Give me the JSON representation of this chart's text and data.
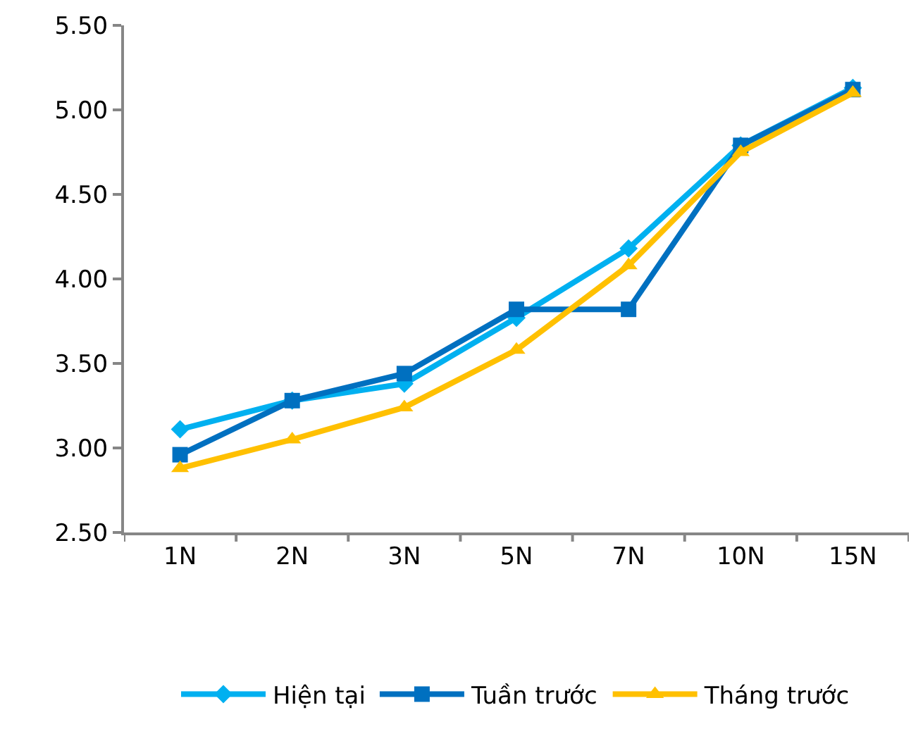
{
  "chart_data": {
    "type": "line",
    "categories": [
      "1N",
      "2N",
      "3N",
      "5N",
      "7N",
      "10N",
      "15N"
    ],
    "series": [
      {
        "name": "Hiện tại",
        "color": "#00b0f0",
        "marker": "diamond",
        "values": [
          3.11,
          3.28,
          3.38,
          3.77,
          4.18,
          4.79,
          5.13
        ]
      },
      {
        "name": "Tuần trước",
        "color": "#0070c0",
        "marker": "square",
        "values": [
          2.96,
          3.28,
          3.44,
          3.82,
          3.82,
          4.79,
          5.12
        ]
      },
      {
        "name": "Tháng trước",
        "color": "#ffc000",
        "marker": "triangle",
        "values": [
          2.88,
          3.05,
          3.24,
          3.58,
          4.08,
          4.75,
          5.1
        ]
      }
    ],
    "ylim": [
      2.5,
      5.5
    ],
    "yticks": [
      {
        "value": 2.5,
        "label": "2.50"
      },
      {
        "value": 3,
        "label": "3.00"
      },
      {
        "value": 3.5,
        "label": "3.50"
      },
      {
        "value": 4,
        "label": "4.00"
      },
      {
        "value": 4.5,
        "label": "4.50"
      },
      {
        "value": 5,
        "label": "5.00"
      },
      {
        "value": 5.5,
        "label": "5.50"
      }
    ],
    "grid": false,
    "legend": "bottom",
    "line_style": "solid"
  }
}
